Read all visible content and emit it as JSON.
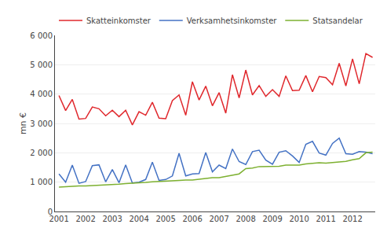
{
  "chart_data": {
    "type": "line",
    "ylabel": "mn €",
    "x": [
      2001,
      2001.25,
      2001.5,
      2001.75,
      2002,
      2002.25,
      2002.5,
      2002.75,
      2003,
      2003.25,
      2003.5,
      2003.75,
      2004,
      2004.25,
      2004.5,
      2004.75,
      2005,
      2005.25,
      2005.5,
      2005.75,
      2006,
      2006.25,
      2006.5,
      2006.75,
      2007,
      2007.25,
      2007.5,
      2007.75,
      2008,
      2008.25,
      2008.5,
      2008.75,
      2009,
      2009.25,
      2009.5,
      2009.75,
      2010,
      2010.25,
      2010.5,
      2010.75,
      2011,
      2011.25,
      2011.5,
      2011.75,
      2012,
      2012.25,
      2012.5,
      2012.75
    ],
    "series": [
      {
        "name": "Skatteinkomster",
        "color": "#e0282d",
        "values": [
          3950,
          3440,
          3820,
          3150,
          3170,
          3560,
          3500,
          3260,
          3450,
          3230,
          3450,
          2950,
          3400,
          3280,
          3720,
          3180,
          3160,
          3780,
          3970,
          3280,
          4420,
          3800,
          4270,
          3600,
          4050,
          3350,
          4660,
          3870,
          4820,
          3970,
          4290,
          3920,
          4150,
          3920,
          4620,
          4120,
          4130,
          4630,
          4080,
          4600,
          4560,
          4320,
          5050,
          4280,
          5200,
          4350,
          5380,
          5250
        ]
      },
      {
        "name": "Verksamhetsinkomster",
        "color": "#4472c4",
        "values": [
          1280,
          1000,
          1580,
          960,
          1020,
          1560,
          1590,
          1010,
          1430,
          980,
          1590,
          970,
          1000,
          1090,
          1680,
          1060,
          1090,
          1210,
          1980,
          1210,
          1280,
          1290,
          2010,
          1350,
          1580,
          1460,
          2130,
          1700,
          1600,
          2040,
          2090,
          1750,
          1610,
          2020,
          2070,
          1890,
          1670,
          2290,
          2390,
          1990,
          1920,
          2320,
          2500,
          1970,
          1950,
          2040,
          2020,
          1970
        ]
      },
      {
        "name": "Statsandelar",
        "color": "#7db030",
        "values": [
          830,
          850,
          870,
          870,
          870,
          880,
          900,
          900,
          910,
          930,
          950,
          960,
          980,
          990,
          1010,
          1020,
          1020,
          1040,
          1060,
          1070,
          1070,
          1100,
          1130,
          1150,
          1150,
          1190,
          1250,
          1280,
          1460,
          1480,
          1530,
          1530,
          1530,
          1540,
          1580,
          1590,
          1580,
          1620,
          1650,
          1660,
          1650,
          1670,
          1710,
          1710,
          1760,
          1800,
          2000,
          2020
        ]
      }
    ],
    "xlim": [
      2000.85,
      2012.85
    ],
    "xticks": [
      2001,
      2002,
      2003,
      2004,
      2005,
      2006,
      2007,
      2008,
      2009,
      2010,
      2011,
      2012
    ],
    "ylim": [
      0,
      6000
    ],
    "yticks": [
      0,
      {
        "value": 1000,
        "label": "1 000"
      },
      {
        "value": 2000,
        "label": "2 000"
      },
      {
        "value": 3000,
        "label": "3 000"
      },
      {
        "value": 4000,
        "label": "4 000"
      },
      {
        "value": 5000,
        "label": "5 000"
      },
      {
        "value": 6000,
        "label": "6 000"
      }
    ],
    "grid": true,
    "legend": "upper left"
  }
}
